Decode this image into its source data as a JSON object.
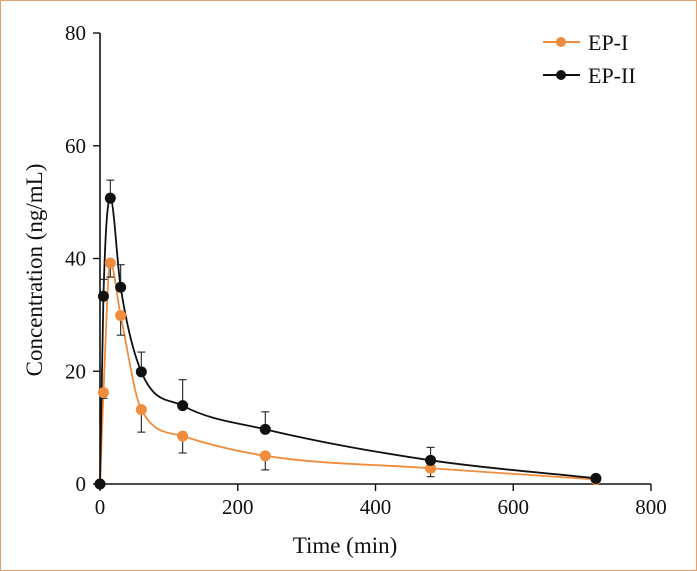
{
  "chart_data": {
    "type": "line",
    "xlabel": "Time (min)",
    "ylabel": "Concentration (ng/mL)",
    "xlim": [
      0,
      800
    ],
    "ylim": [
      0,
      80
    ],
    "xticks": [
      0,
      200,
      400,
      600,
      800
    ],
    "yticks": [
      0,
      20,
      40,
      60,
      80
    ],
    "xtick_labels": [
      "0",
      "200",
      "400",
      "600",
      "800"
    ],
    "ytick_labels": [
      "0",
      "20",
      "40",
      "60",
      "80"
    ],
    "grid": false,
    "legend_position": "top-right",
    "series": [
      {
        "name": "EP-I",
        "color": "#f08c3c",
        "x": [
          0,
          5,
          15,
          30,
          60,
          120,
          240,
          480,
          720
        ],
        "y": [
          0,
          16.2,
          39.2,
          29.9,
          13.2,
          8.5,
          5.0,
          2.8,
          0.8
        ],
        "err": [
          0,
          1.0,
          2.5,
          3.5,
          4.0,
          3.0,
          2.5,
          1.5,
          0.3
        ]
      },
      {
        "name": "EP-II",
        "color": "#111111",
        "x": [
          0,
          5,
          15,
          30,
          60,
          120,
          240,
          480,
          720
        ],
        "y": [
          0,
          33.3,
          50.7,
          34.9,
          19.9,
          13.9,
          9.7,
          4.2,
          1.0
        ],
        "err": [
          0,
          3.0,
          3.2,
          4.0,
          3.5,
          4.6,
          3.1,
          2.3,
          0.3
        ]
      }
    ]
  }
}
